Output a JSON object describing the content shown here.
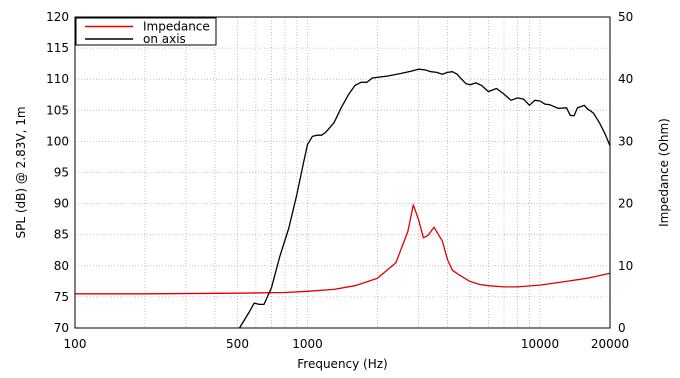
{
  "chart_data": {
    "type": "line",
    "title": "",
    "xlabel": "Frequency (Hz)",
    "ylabel": "SPL (dB) @ 2.83V, 1m",
    "y2label": "Impedance (Ohm)",
    "x_scale": "log",
    "xlim": [
      100,
      20000
    ],
    "ylim": [
      70,
      120
    ],
    "y2lim": [
      0,
      50
    ],
    "x_ticks": [
      100,
      500,
      1000,
      10000,
      20000
    ],
    "x_tick_labels": [
      "100",
      "500",
      "1000",
      "10000",
      "20000"
    ],
    "y_ticks": [
      70,
      75,
      80,
      85,
      90,
      95,
      100,
      105,
      110,
      115,
      120
    ],
    "y_tick_labels": [
      "70",
      "75",
      "80",
      "85",
      "90",
      "95",
      "100",
      "105",
      "110",
      "115",
      "120"
    ],
    "y2_ticks": [
      0,
      10,
      20,
      30,
      40,
      50
    ],
    "y2_tick_labels": [
      "0",
      "10",
      "20",
      "30",
      "40",
      "50"
    ],
    "grid": true,
    "legend": {
      "position": "top-left",
      "entries": [
        "Impedance",
        "on axis"
      ]
    },
    "series": [
      {
        "name": "Impedance",
        "axis": "right",
        "color": "#e00000",
        "x": [
          100,
          200,
          500,
          800,
          1000,
          1300,
          1600,
          2000,
          2400,
          2700,
          2850,
          3000,
          3150,
          3300,
          3500,
          3800,
          4000,
          4200,
          4500,
          5000,
          5500,
          6000,
          7000,
          8000,
          10000,
          13000,
          16000,
          20000
        ],
        "y": [
          5.5,
          5.5,
          5.6,
          5.7,
          5.9,
          6.2,
          6.8,
          8.0,
          10.5,
          15.5,
          19.8,
          17.5,
          14.5,
          14.9,
          16.2,
          14.0,
          11.0,
          9.3,
          8.5,
          7.5,
          7.0,
          6.8,
          6.6,
          6.6,
          6.9,
          7.5,
          8.0,
          8.8
        ]
      },
      {
        "name": "on axis",
        "axis": "left",
        "color": "#000000",
        "x": [
          510,
          560,
          590,
          620,
          650,
          700,
          760,
          830,
          900,
          960,
          1000,
          1050,
          1100,
          1150,
          1200,
          1300,
          1400,
          1500,
          1600,
          1700,
          1800,
          1900,
          2000,
          2200,
          2500,
          2800,
          3000,
          3200,
          3400,
          3600,
          3800,
          4000,
          4200,
          4400,
          4600,
          4800,
          5000,
          5300,
          5600,
          6000,
          6500,
          7000,
          7500,
          8000,
          8500,
          9000,
          9500,
          10000,
          10500,
          11000,
          12000,
          13000,
          13500,
          14000,
          14500,
          15000,
          15500,
          16000,
          16500,
          17000,
          18000,
          19000,
          20000
        ],
        "y": [
          70,
          72.5,
          74,
          73.8,
          73.8,
          76.5,
          81.5,
          86,
          91.5,
          96.5,
          99.5,
          100.8,
          101,
          101,
          101.5,
          103,
          105.5,
          107.5,
          109,
          109.5,
          109.5,
          110.2,
          110.3,
          110.5,
          110.9,
          111.3,
          111.6,
          111.5,
          111.2,
          111.1,
          110.8,
          111.1,
          111.2,
          110.8,
          110,
          109.3,
          109.1,
          109.4,
          109,
          108,
          108.5,
          107.6,
          106.6,
          107,
          106.8,
          105.8,
          106.6,
          106.5,
          106,
          105.9,
          105.3,
          105.4,
          104.2,
          104.1,
          105.4,
          105.6,
          105.8,
          105.2,
          104.9,
          104.5,
          103,
          101.3,
          99.3
        ]
      }
    ]
  }
}
